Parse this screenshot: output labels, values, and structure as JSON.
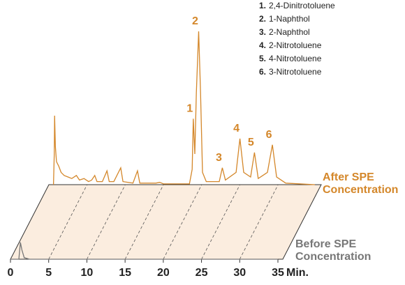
{
  "chart_data": {
    "type": "line",
    "xlabel": "Min.",
    "xlim": [
      0,
      35
    ],
    "xticks": [
      0,
      5,
      10,
      15,
      20,
      25,
      30,
      35
    ],
    "ylim": [
      0,
      100
    ],
    "legend": [
      {
        "number": "1.",
        "name": "2,4-Dinitrotoluene"
      },
      {
        "number": "2.",
        "name": "1-Naphthol"
      },
      {
        "number": "3.",
        "name": "2-Naphthol"
      },
      {
        "number": "4.",
        "name": "2-Nitrotoluene"
      },
      {
        "number": "5.",
        "name": "4-Nitrotoluene"
      },
      {
        "number": "6.",
        "name": "3-Nitrotoluene"
      }
    ],
    "series": [
      {
        "name": "After SPE Concentration",
        "label": [
          "After SPE",
          "Concentration"
        ],
        "color": "#d4872a",
        "x": [
          0.6,
          0.7,
          0.75,
          0.85,
          1.0,
          1.3,
          1.6,
          2.0,
          2.5,
          3.0,
          3.6,
          4.0,
          4.6,
          5.2,
          5.6,
          6.0,
          6.3,
          7.0,
          7.6,
          7.9,
          8.5,
          9.4,
          9.7,
          11.0,
          11.6,
          11.9,
          14.0,
          14.5,
          15.0,
          18.4,
          18.75,
          18.9,
          19.1,
          19.3,
          19.6,
          19.85,
          20.1,
          20.6,
          22.3,
          22.7,
          23.1,
          24.5,
          25.0,
          25.5,
          26.4,
          26.9,
          27.4,
          28.6,
          29.25,
          29.8,
          30.4,
          31.0,
          34.8
        ],
        "values": [
          0,
          20,
          45,
          25,
          15,
          12,
          8,
          6,
          5,
          4,
          6,
          3,
          4,
          2,
          3,
          6,
          2,
          2,
          9,
          2,
          2,
          11,
          2,
          1,
          9,
          1,
          1,
          1.5,
          0.5,
          0.5,
          10,
          43,
          20,
          60,
          100,
          60,
          8,
          2,
          2,
          11,
          3,
          8,
          30,
          8,
          5,
          21,
          4,
          8,
          26,
          5,
          3,
          1,
          0
        ],
        "peaks": [
          {
            "label": "1",
            "time": 18.9
          },
          {
            "label": "2",
            "time": 19.6
          },
          {
            "label": "3",
            "time": 22.7
          },
          {
            "label": "4",
            "time": 25.0
          },
          {
            "label": "5",
            "time": 26.9
          },
          {
            "label": "6",
            "time": 29.25
          }
        ]
      },
      {
        "name": "Before SPE Concentration",
        "label": [
          "Before SPE",
          "Concentration"
        ],
        "color": "#777777",
        "x": [
          0,
          1.1,
          1.3,
          1.5,
          1.8,
          2.5,
          35
        ],
        "values": [
          0,
          0,
          11,
          6,
          1,
          0,
          0
        ]
      }
    ]
  }
}
